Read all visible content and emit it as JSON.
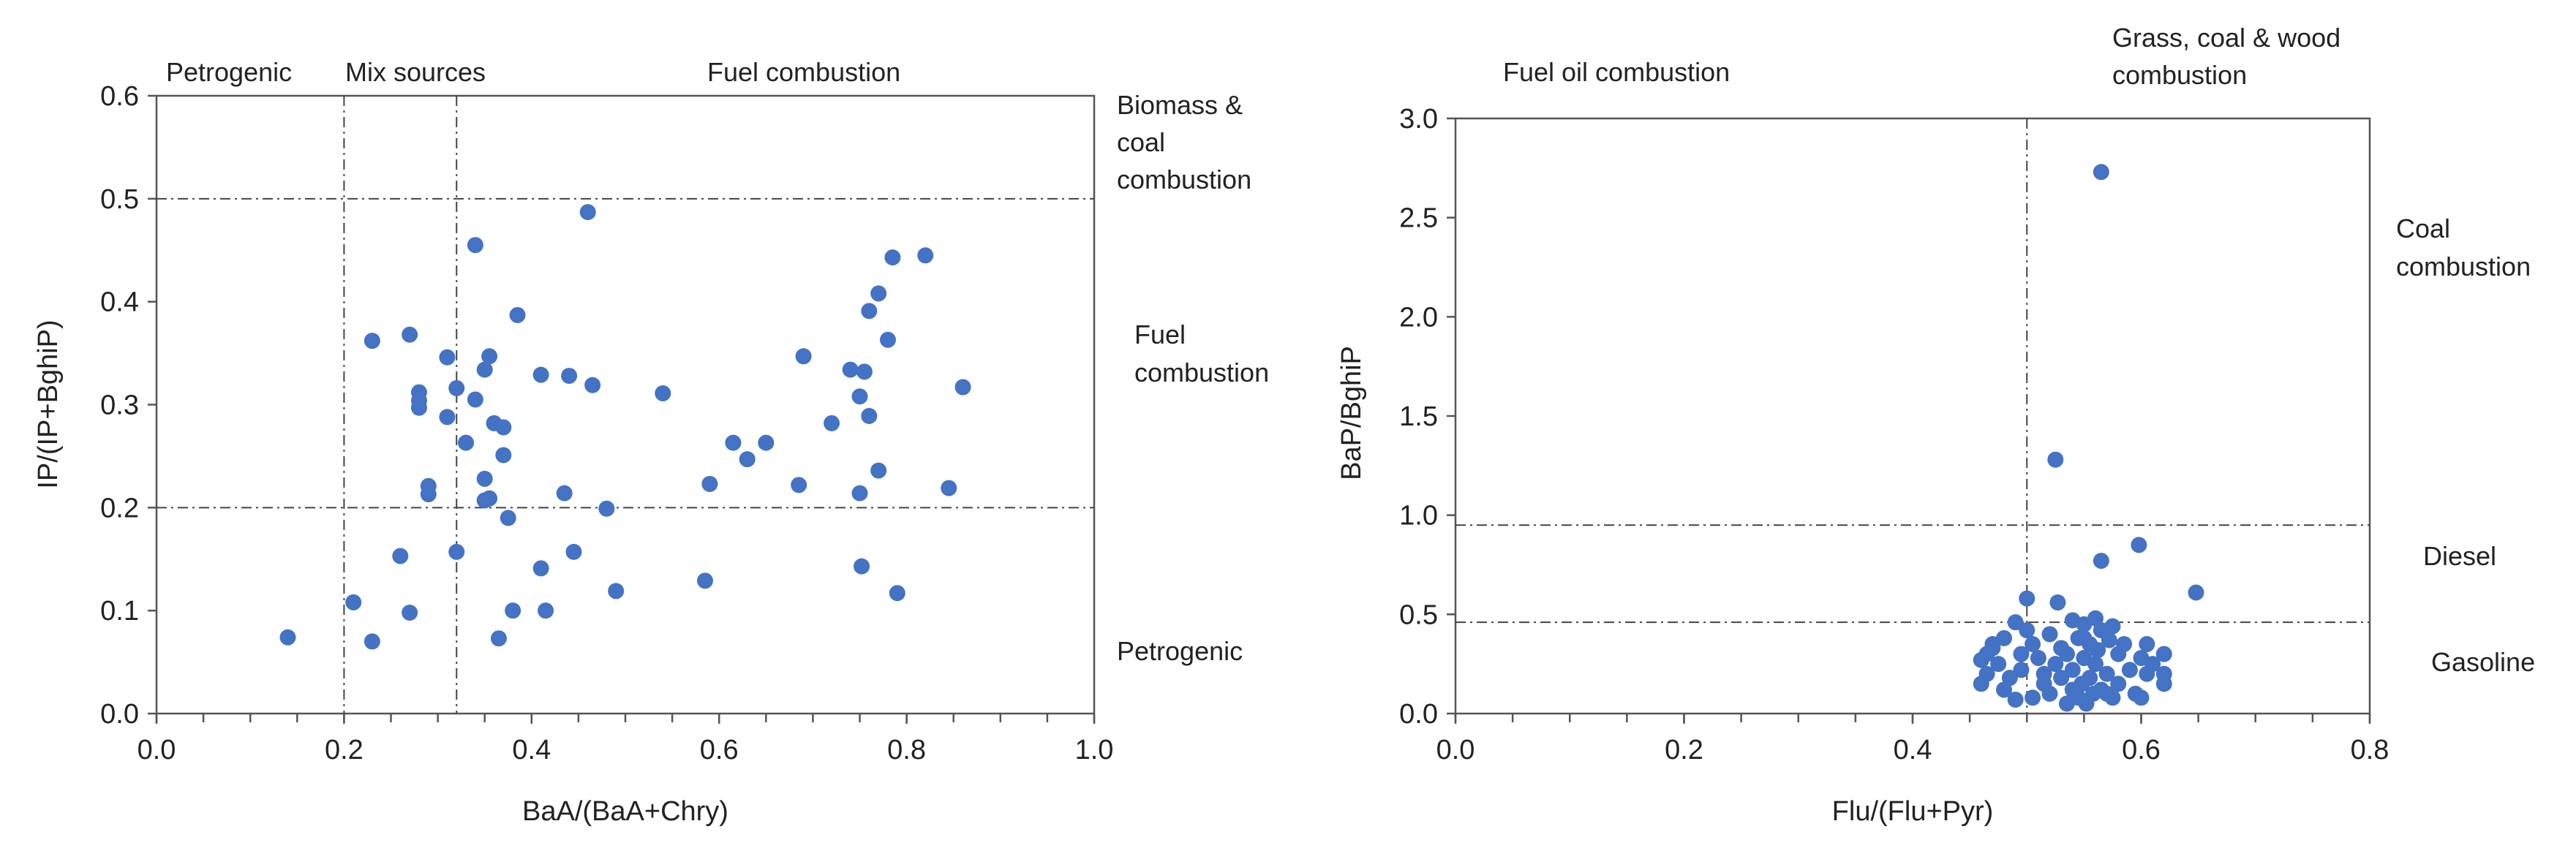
{
  "colors": {
    "marker": "#4472C4",
    "axis": "#555555",
    "text": "#222222",
    "refline": "#444444"
  },
  "chart_data": [
    {
      "type": "scatter",
      "xlabel": "BaA/(BaA+Chry)",
      "ylabel": "IP/(IP+BghiP)",
      "xlim": [
        0,
        1.0
      ],
      "ylim": [
        0,
        0.6
      ],
      "xticks": [
        0,
        0.2,
        0.4,
        0.6,
        0.8,
        1.0
      ],
      "xtick_labels": [
        "0.0",
        "0.2",
        "0.4",
        "0.6",
        "0.8",
        "1.0"
      ],
      "yticks": [
        0,
        0.1,
        0.2,
        0.3,
        0.4,
        0.5,
        0.6
      ],
      "ytick_labels": [
        "0.0",
        "0.1",
        "0.2",
        "0.3",
        "0.4",
        "0.5",
        "0.6"
      ],
      "vlines": [
        0.2,
        0.32
      ],
      "hlines": [
        0.2,
        0.5
      ],
      "region_labels": {
        "top_left": "Petrogenic",
        "top_mid": "Mix sources",
        "top_right": "Fuel combustion",
        "right_upper": [
          "Biomass &",
          "coal",
          "combustion"
        ],
        "right_mid": [
          "Fuel",
          "combustion"
        ],
        "right_lower": "Petrogenic"
      },
      "x": [
        0.14,
        0.21,
        0.23,
        0.23,
        0.26,
        0.27,
        0.27,
        0.28,
        0.28,
        0.28,
        0.29,
        0.29,
        0.31,
        0.31,
        0.32,
        0.32,
        0.33,
        0.34,
        0.34,
        0.35,
        0.35,
        0.35,
        0.355,
        0.355,
        0.36,
        0.365,
        0.37,
        0.37,
        0.375,
        0.38,
        0.385,
        0.41,
        0.41,
        0.415,
        0.435,
        0.44,
        0.445,
        0.46,
        0.465,
        0.48,
        0.49,
        0.54,
        0.585,
        0.59,
        0.615,
        0.63,
        0.65,
        0.685,
        0.69,
        0.72,
        0.74,
        0.75,
        0.75,
        0.752,
        0.755,
        0.76,
        0.76,
        0.77,
        0.77,
        0.78,
        0.785,
        0.79,
        0.82,
        0.845,
        0.86
      ],
      "y": [
        0.074,
        0.108,
        0.07,
        0.362,
        0.153,
        0.368,
        0.098,
        0.312,
        0.304,
        0.297,
        0.221,
        0.213,
        0.346,
        0.288,
        0.316,
        0.157,
        0.263,
        0.455,
        0.305,
        0.207,
        0.228,
        0.334,
        0.347,
        0.209,
        0.282,
        0.073,
        0.251,
        0.278,
        0.19,
        0.1,
        0.387,
        0.141,
        0.329,
        0.1,
        0.214,
        0.328,
        0.157,
        0.487,
        0.319,
        0.199,
        0.119,
        0.311,
        0.129,
        0.223,
        0.263,
        0.247,
        0.263,
        0.222,
        0.347,
        0.282,
        0.334,
        0.308,
        0.214,
        0.143,
        0.332,
        0.289,
        0.391,
        0.236,
        0.408,
        0.363,
        0.443,
        0.117,
        0.445,
        0.219,
        0.317
      ]
    },
    {
      "type": "scatter",
      "xlabel": "Flu/(Flu+Pyr)",
      "ylabel": "BaP/BghiP",
      "xlim": [
        0,
        0.8
      ],
      "ylim": [
        0,
        3.0
      ],
      "xticks": [
        0,
        0.2,
        0.4,
        0.6,
        0.8
      ],
      "xtick_labels": [
        "0.0",
        "0.2",
        "0.4",
        "0.6",
        "0.8"
      ],
      "yticks": [
        0,
        0.5,
        1.0,
        1.5,
        2.0,
        2.5,
        3.0
      ],
      "ytick_labels": [
        "0.0",
        "0.5",
        "1.0",
        "1.5",
        "2.0",
        "2.5",
        "3.0"
      ],
      "vlines": [
        0.5
      ],
      "hlines": [
        0.46,
        0.95
      ],
      "region_labels": {
        "top_left": "Fuel oil combustion",
        "top_right": [
          "Grass, coal & wood",
          "combustion"
        ],
        "right_upper": [
          "Coal",
          "combustion"
        ],
        "right_mid": "Diesel",
        "right_lower": "Gasoline"
      },
      "x": [
        0.565,
        0.525,
        0.598,
        0.565,
        0.648,
        0.5,
        0.527,
        0.49,
        0.48,
        0.47,
        0.465,
        0.46,
        0.46,
        0.465,
        0.47,
        0.475,
        0.48,
        0.485,
        0.495,
        0.5,
        0.505,
        0.505,
        0.51,
        0.515,
        0.515,
        0.52,
        0.52,
        0.525,
        0.53,
        0.53,
        0.535,
        0.535,
        0.54,
        0.54,
        0.54,
        0.545,
        0.545,
        0.548,
        0.55,
        0.55,
        0.552,
        0.555,
        0.555,
        0.558,
        0.56,
        0.56,
        0.562,
        0.565,
        0.565,
        0.57,
        0.572,
        0.575,
        0.575,
        0.58,
        0.58,
        0.585,
        0.59,
        0.595,
        0.6,
        0.6,
        0.605,
        0.605,
        0.61,
        0.62,
        0.62,
        0.62,
        0.49,
        0.495,
        0.55,
        0.57
      ],
      "y": [
        2.73,
        1.28,
        0.85,
        0.77,
        0.61,
        0.58,
        0.56,
        0.46,
        0.38,
        0.35,
        0.3,
        0.27,
        0.15,
        0.2,
        0.33,
        0.25,
        0.12,
        0.18,
        0.3,
        0.42,
        0.35,
        0.08,
        0.28,
        0.2,
        0.15,
        0.4,
        0.1,
        0.25,
        0.33,
        0.18,
        0.05,
        0.3,
        0.47,
        0.12,
        0.22,
        0.08,
        0.38,
        0.15,
        0.45,
        0.28,
        0.05,
        0.35,
        0.18,
        0.1,
        0.48,
        0.25,
        0.32,
        0.12,
        0.42,
        0.2,
        0.37,
        0.44,
        0.08,
        0.3,
        0.15,
        0.35,
        0.22,
        0.1,
        0.28,
        0.08,
        0.2,
        0.35,
        0.25,
        0.15,
        0.3,
        0.2,
        0.07,
        0.22,
        0.38,
        0.1
      ]
    }
  ]
}
